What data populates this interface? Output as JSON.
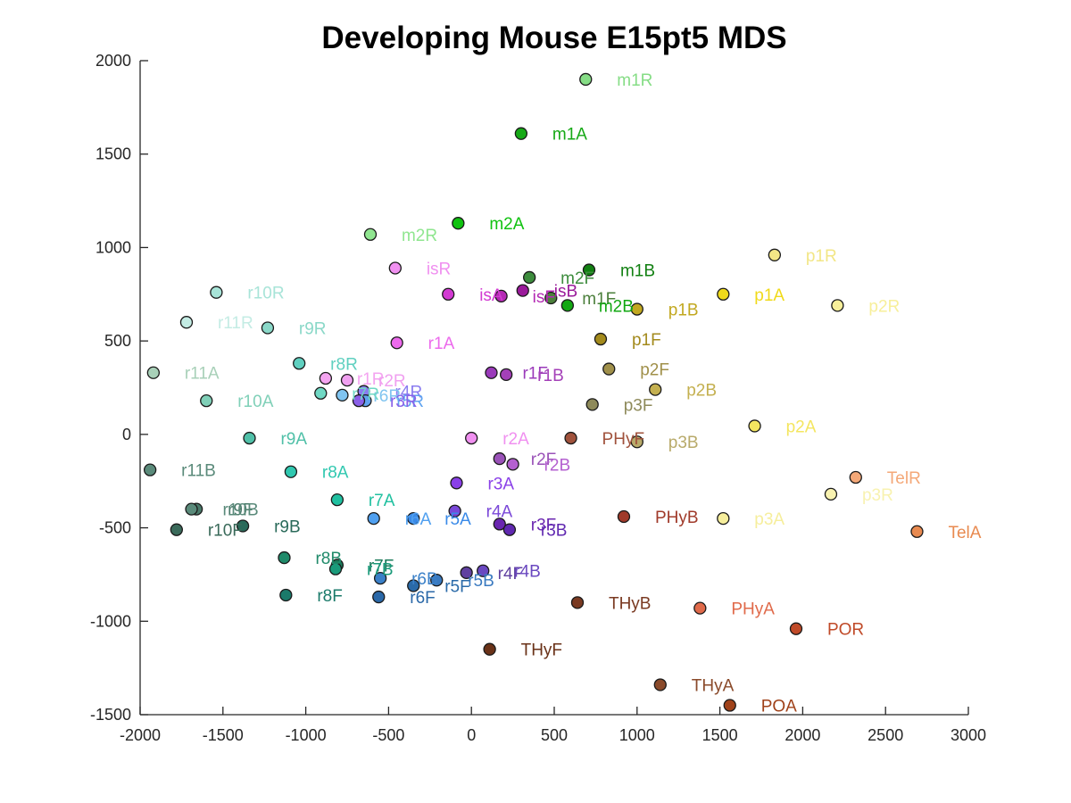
{
  "chart_data": {
    "type": "scatter",
    "title": "Developing Mouse E15pt5 MDS",
    "xlabel": "",
    "ylabel": "",
    "xlim": [
      -2000,
      3000
    ],
    "ylim": [
      -1500,
      2000
    ],
    "xticks": [
      -2000,
      -1500,
      -1000,
      -500,
      0,
      500,
      1000,
      1500,
      2000,
      2500,
      3000
    ],
    "yticks": [
      -1500,
      -1000,
      -500,
      0,
      500,
      1000,
      1500,
      2000
    ],
    "grid": false,
    "points": [
      {
        "label": "m1R",
        "x": 690,
        "y": 1900,
        "color": "#86dd86"
      },
      {
        "label": "m1A",
        "x": 300,
        "y": 1610,
        "color": "#16a916"
      },
      {
        "label": "m2A",
        "x": -80,
        "y": 1130,
        "color": "#10c210"
      },
      {
        "label": "m2R",
        "x": -610,
        "y": 1070,
        "color": "#90e690"
      },
      {
        "label": "m1B",
        "x": 710,
        "y": 880,
        "color": "#128012"
      },
      {
        "label": "m2F",
        "x": 350,
        "y": 840,
        "color": "#3d8c3d"
      },
      {
        "label": "m1F",
        "x": 480,
        "y": 730,
        "color": "#4b7f3b"
      },
      {
        "label": "m2B",
        "x": 580,
        "y": 690,
        "color": "#12a812"
      },
      {
        "label": "isR",
        "x": -460,
        "y": 890,
        "color": "#f090f0"
      },
      {
        "label": "isA",
        "x": -140,
        "y": 750,
        "color": "#d23ad2"
      },
      {
        "label": "isF",
        "x": 180,
        "y": 740,
        "color": "#b42ab4"
      },
      {
        "label": "isB",
        "x": 310,
        "y": 770,
        "color": "#9a1a9a"
      },
      {
        "label": "p1R",
        "x": 1830,
        "y": 960,
        "color": "#f2e686"
      },
      {
        "label": "p1A",
        "x": 1520,
        "y": 750,
        "color": "#f0da1a"
      },
      {
        "label": "p2R",
        "x": 2210,
        "y": 690,
        "color": "#f7ef9a"
      },
      {
        "label": "p1B",
        "x": 1000,
        "y": 670,
        "color": "#c2a820"
      },
      {
        "label": "p1F",
        "x": 780,
        "y": 510,
        "color": "#a38a1c"
      },
      {
        "label": "p2F",
        "x": 830,
        "y": 350,
        "color": "#a0904a"
      },
      {
        "label": "p2B",
        "x": 1110,
        "y": 240,
        "color": "#c4b050"
      },
      {
        "label": "p3F",
        "x": 730,
        "y": 160,
        "color": "#8e8a5a"
      },
      {
        "label": "p2A",
        "x": 1710,
        "y": 45,
        "color": "#f4e660"
      },
      {
        "label": "p3B",
        "x": 1000,
        "y": -40,
        "color": "#b8aa6a"
      },
      {
        "label": "p3R",
        "x": 2170,
        "y": -320,
        "color": "#f8f2b0"
      },
      {
        "label": "p3A",
        "x": 1520,
        "y": -450,
        "color": "#f6ee9c"
      },
      {
        "label": "TelR",
        "x": 2320,
        "y": -230,
        "color": "#f4a878"
      },
      {
        "label": "TelA",
        "x": 2690,
        "y": -520,
        "color": "#e88a50"
      },
      {
        "label": "PHyF",
        "x": 600,
        "y": -20,
        "color": "#a0523c"
      },
      {
        "label": "PHyB",
        "x": 920,
        "y": -440,
        "color": "#a03a2a"
      },
      {
        "label": "THyB",
        "x": 640,
        "y": -900,
        "color": "#7a3a22"
      },
      {
        "label": "PHyA",
        "x": 1380,
        "y": -930,
        "color": "#e06a4a"
      },
      {
        "label": "POR",
        "x": 1960,
        "y": -1040,
        "color": "#c04a28"
      },
      {
        "label": "THyF",
        "x": 110,
        "y": -1150,
        "color": "#6a3218"
      },
      {
        "label": "THyA",
        "x": 1140,
        "y": -1340,
        "color": "#8a4a2a"
      },
      {
        "label": "POA",
        "x": 1560,
        "y": -1450,
        "color": "#a0421a"
      },
      {
        "label": "r1A",
        "x": -450,
        "y": 490,
        "color": "#ec6aec"
      },
      {
        "label": "r1F",
        "x": 120,
        "y": 330,
        "color": "#9a3aba"
      },
      {
        "label": "r1B",
        "x": 210,
        "y": 320,
        "color": "#a440b8"
      },
      {
        "label": "r1R",
        "x": -880,
        "y": 300,
        "color": "#f4a4f0"
      },
      {
        "label": "r2R",
        "x": -750,
        "y": 290,
        "color": "#f0a0f0"
      },
      {
        "label": "r4R",
        "x": -650,
        "y": 230,
        "color": "#8a7cf0"
      },
      {
        "label": "r6R",
        "x": -780,
        "y": 210,
        "color": "#80c4f0"
      },
      {
        "label": "r5R",
        "x": -640,
        "y": 180,
        "color": "#60a4f0"
      },
      {
        "label": "r3R",
        "x": -680,
        "y": 180,
        "color": "#8a60e8"
      },
      {
        "label": "r2A",
        "x": 0,
        "y": -20,
        "color": "#f090f0"
      },
      {
        "label": "r2F",
        "x": 170,
        "y": -130,
        "color": "#9a52b8"
      },
      {
        "label": "r2B",
        "x": 250,
        "y": -160,
        "color": "#b460d0"
      },
      {
        "label": "r3A",
        "x": -90,
        "y": -260,
        "color": "#8a40e8"
      },
      {
        "label": "r4A",
        "x": -100,
        "y": -410,
        "color": "#7a48d8"
      },
      {
        "label": "r3F",
        "x": 170,
        "y": -480,
        "color": "#6a26b0"
      },
      {
        "label": "r3B",
        "x": 230,
        "y": -510,
        "color": "#6028b0"
      },
      {
        "label": "r5A",
        "x": -350,
        "y": -450,
        "color": "#3a8ae8"
      },
      {
        "label": "r6A",
        "x": -590,
        "y": -450,
        "color": "#50a0f0"
      },
      {
        "label": "r4F",
        "x": -30,
        "y": -740,
        "color": "#6040a0"
      },
      {
        "label": "r4B",
        "x": 70,
        "y": -730,
        "color": "#6a48c0"
      },
      {
        "label": "r5B",
        "x": -210,
        "y": -780,
        "color": "#3a7ac0"
      },
      {
        "label": "r5F",
        "x": -350,
        "y": -810,
        "color": "#2a6aa8"
      },
      {
        "label": "r6B",
        "x": -550,
        "y": -770,
        "color": "#3a80c8"
      },
      {
        "label": "r6F",
        "x": -560,
        "y": -870,
        "color": "#2a68a8"
      },
      {
        "label": "r10R",
        "x": -1540,
        "y": 760,
        "color": "#a8e4d8"
      },
      {
        "label": "r11R",
        "x": -1720,
        "y": 600,
        "color": "#c4ece4"
      },
      {
        "label": "r9R",
        "x": -1230,
        "y": 570,
        "color": "#8ad8c8"
      },
      {
        "label": "r8R",
        "x": -1040,
        "y": 380,
        "color": "#60d0c0"
      },
      {
        "label": "r7R",
        "x": -910,
        "y": 220,
        "color": "#70d8c4"
      },
      {
        "label": "r11A",
        "x": -1920,
        "y": 330,
        "color": "#a8d0b8"
      },
      {
        "label": "r10A",
        "x": -1600,
        "y": 180,
        "color": "#80d0b8"
      },
      {
        "label": "r9A",
        "x": -1340,
        "y": -20,
        "color": "#50c0a8"
      },
      {
        "label": "r8A",
        "x": -1090,
        "y": -200,
        "color": "#30c8b0"
      },
      {
        "label": "r7A",
        "x": -810,
        "y": -350,
        "color": "#20c0a0"
      },
      {
        "label": "r11B",
        "x": -1940,
        "y": -190,
        "color": "#5a8a7a"
      },
      {
        "label": "r9F",
        "x": -1660,
        "y": -400,
        "color": "#4a7a6a"
      },
      {
        "label": "r10B",
        "x": -1690,
        "y": -400,
        "color": "#5a8a7a"
      },
      {
        "label": "r9B",
        "x": -1380,
        "y": -490,
        "color": "#2a6a5a"
      },
      {
        "label": "r10F",
        "x": -1780,
        "y": -510,
        "color": "#3a6a5a"
      },
      {
        "label": "r8B",
        "x": -1130,
        "y": -660,
        "color": "#208a6a"
      },
      {
        "label": "r7F",
        "x": -810,
        "y": -700,
        "color": "#1a7a5a"
      },
      {
        "label": "r7B",
        "x": -820,
        "y": -720,
        "color": "#1a9a7a"
      },
      {
        "label": "r8F",
        "x": -1120,
        "y": -860,
        "color": "#1a7a6a"
      }
    ]
  }
}
